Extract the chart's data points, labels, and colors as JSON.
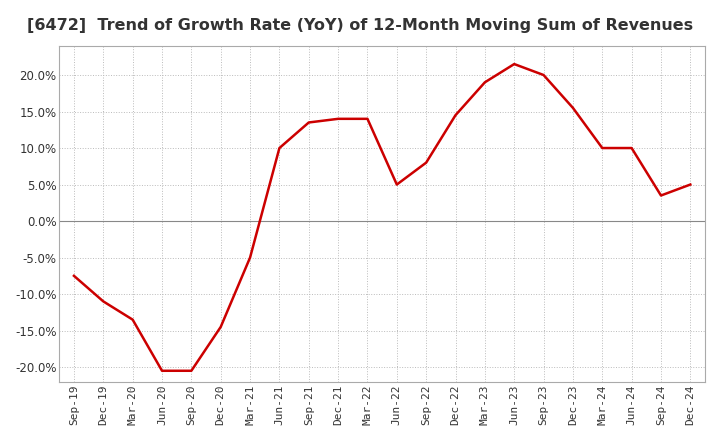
{
  "title": "[6472]  Trend of Growth Rate (YoY) of 12-Month Moving Sum of Revenues",
  "title_fontsize": 11.5,
  "x_labels": [
    "Sep-19",
    "Dec-19",
    "Mar-20",
    "Jun-20",
    "Sep-20",
    "Dec-20",
    "Mar-21",
    "Jun-21",
    "Sep-21",
    "Dec-21",
    "Mar-22",
    "Jun-22",
    "Sep-22",
    "Dec-22",
    "Mar-23",
    "Jun-23",
    "Sep-23",
    "Dec-23",
    "Mar-24",
    "Jun-24",
    "Sep-24",
    "Dec-24"
  ],
  "y_values": [
    -7.5,
    -11.0,
    -13.5,
    -20.5,
    -20.5,
    -14.5,
    -5.0,
    10.0,
    13.5,
    14.0,
    14.0,
    5.0,
    8.0,
    14.5,
    19.0,
    21.5,
    20.0,
    15.5,
    10.0,
    10.0,
    3.5,
    5.0
  ],
  "line_color": "#cc0000",
  "background_color": "#ffffff",
  "plot_bg_color": "#ffffff",
  "ylim": [
    -22,
    24
  ],
  "yticks": [
    -20,
    -15,
    -10,
    -5,
    0,
    5,
    10,
    15,
    20
  ],
  "grid_color": "#bbbbbb",
  "zero_line_color": "#888888"
}
